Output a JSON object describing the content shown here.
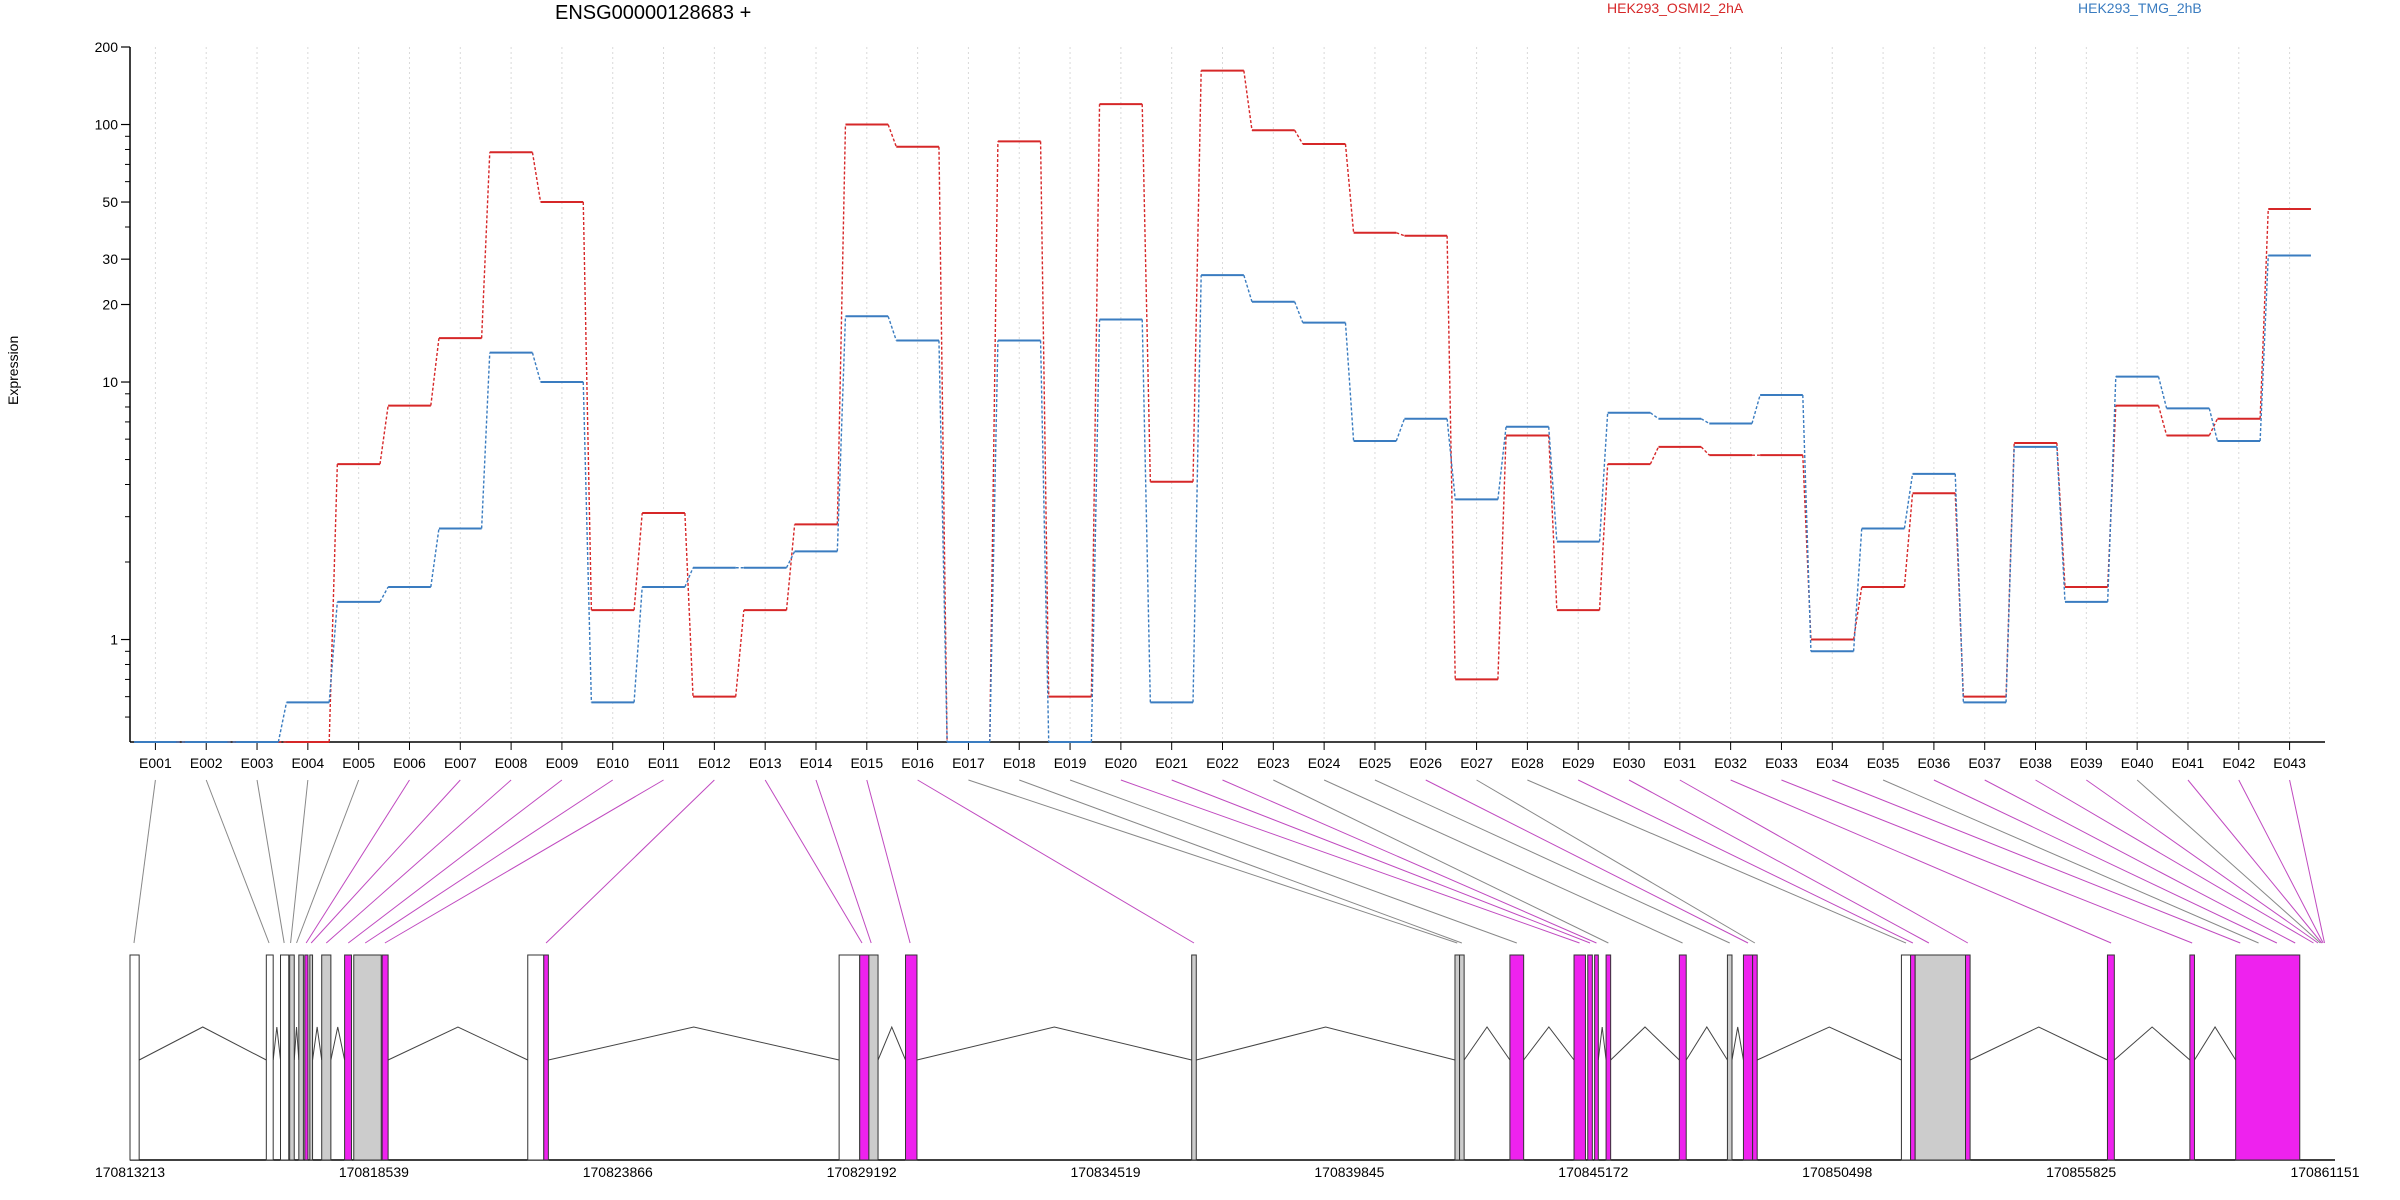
{
  "title": "ENSG00000128683 +",
  "ylabel": "Expression",
  "legend": [
    {
      "name": "HEK293_OSMI2_2hA",
      "color": "#d62728"
    },
    {
      "name": "HEK293_TMG_2hB",
      "color": "#3a7cc0"
    }
  ],
  "chart_data": {
    "type": "line",
    "title": "ENSG00000128683 +",
    "ylabel": "Expression",
    "yscale": "log",
    "ylim": [
      0.4,
      200
    ],
    "y_ticks": [
      1,
      10,
      20,
      30,
      50,
      100,
      200
    ],
    "categories": [
      "E001",
      "E002",
      "E003",
      "E004",
      "E005",
      "E006",
      "E007",
      "E008",
      "E009",
      "E010",
      "E011",
      "E012",
      "E013",
      "E014",
      "E015",
      "E016",
      "E017",
      "E018",
      "E019",
      "E020",
      "E021",
      "E022",
      "E023",
      "E024",
      "E025",
      "E026",
      "E027",
      "E028",
      "E029",
      "E030",
      "E031",
      "E032",
      "E033",
      "E034",
      "E035",
      "E036",
      "E037",
      "E038",
      "E039",
      "E040",
      "E041",
      "E042",
      "E043"
    ],
    "series": [
      {
        "name": "HEK293_OSMI2_2hA",
        "color": "#d62728",
        "values": [
          0.4,
          0.4,
          0.4,
          0.4,
          4.8,
          8.1,
          14.8,
          78,
          50,
          1.3,
          3.1,
          0.6,
          1.3,
          2.8,
          100,
          82,
          0.4,
          86,
          0.6,
          120,
          4.1,
          162,
          95,
          84,
          38,
          37,
          0.7,
          6.2,
          1.3,
          4.8,
          5.6,
          5.2,
          5.2,
          1.0,
          1.6,
          3.7,
          0.6,
          5.8,
          1.6,
          8.1,
          6.2,
          7.2,
          47
        ]
      },
      {
        "name": "HEK293_TMG_2hB",
        "color": "#3a7cc0",
        "values": [
          0.4,
          0.4,
          0.4,
          0.57,
          1.4,
          1.6,
          2.7,
          13,
          10,
          0.57,
          1.6,
          1.9,
          1.9,
          2.2,
          18,
          14.5,
          0.4,
          14.5,
          0.4,
          17.5,
          0.57,
          26,
          20.5,
          17,
          5.9,
          7.2,
          3.5,
          6.7,
          2.4,
          7.6,
          7.2,
          6.9,
          8.9,
          0.9,
          2.7,
          4.4,
          0.57,
          5.6,
          1.4,
          10.5,
          7.9,
          5.9,
          31
        ]
      }
    ],
    "genomic_ticks": [
      170813213,
      170818539,
      170823866,
      170829192,
      170834519,
      170839845,
      170845172,
      170850498,
      170855825,
      170861151
    ],
    "genome_range": [
      170813213,
      170861151
    ],
    "exons": [
      {
        "start": 170813213,
        "end": 170813413,
        "type": "white"
      },
      {
        "start": 170816190,
        "end": 170816340,
        "type": "white"
      },
      {
        "start": 170816500,
        "end": 170816680,
        "type": "white"
      },
      {
        "start": 170816700,
        "end": 170816800,
        "type": "grey"
      },
      {
        "start": 170816900,
        "end": 170817000,
        "type": "grey"
      },
      {
        "start": 170817030,
        "end": 170817100,
        "type": "magenta"
      },
      {
        "start": 170817140,
        "end": 170817200,
        "type": "grey"
      },
      {
        "start": 170817400,
        "end": 170817600,
        "type": "grey"
      },
      {
        "start": 170817900,
        "end": 170818050,
        "type": "magenta"
      },
      {
        "start": 170818100,
        "end": 170818700,
        "type": "grey"
      },
      {
        "start": 170818720,
        "end": 170818850,
        "type": "magenta"
      },
      {
        "start": 170821900,
        "end": 170822250,
        "type": "white"
      },
      {
        "start": 170822250,
        "end": 170822350,
        "type": "magenta"
      },
      {
        "start": 170828700,
        "end": 170829150,
        "type": "white"
      },
      {
        "start": 170829150,
        "end": 170829350,
        "type": "magenta"
      },
      {
        "start": 170829350,
        "end": 170829550,
        "type": "grey"
      },
      {
        "start": 170830150,
        "end": 170830400,
        "type": "magenta"
      },
      {
        "start": 170836400,
        "end": 170836500,
        "type": "grey"
      },
      {
        "start": 170842150,
        "end": 170842250,
        "type": "grey"
      },
      {
        "start": 170842250,
        "end": 170842350,
        "type": "grey"
      },
      {
        "start": 170843350,
        "end": 170843650,
        "type": "magenta"
      },
      {
        "start": 170844750,
        "end": 170845000,
        "type": "magenta"
      },
      {
        "start": 170845050,
        "end": 170845150,
        "type": "magenta"
      },
      {
        "start": 170845200,
        "end": 170845280,
        "type": "magenta"
      },
      {
        "start": 170845450,
        "end": 170845550,
        "type": "magenta"
      },
      {
        "start": 170847050,
        "end": 170847200,
        "type": "magenta"
      },
      {
        "start": 170848100,
        "end": 170848200,
        "type": "grey"
      },
      {
        "start": 170848450,
        "end": 170848650,
        "type": "magenta"
      },
      {
        "start": 170848650,
        "end": 170848750,
        "type": "magenta"
      },
      {
        "start": 170851900,
        "end": 170852100,
        "type": "white"
      },
      {
        "start": 170852100,
        "end": 170852200,
        "type": "magenta"
      },
      {
        "start": 170852200,
        "end": 170853300,
        "type": "grey"
      },
      {
        "start": 170853300,
        "end": 170853400,
        "type": "magenta"
      },
      {
        "start": 170856400,
        "end": 170856550,
        "type": "magenta"
      },
      {
        "start": 170858200,
        "end": 170858300,
        "type": "magenta"
      },
      {
        "start": 170859200,
        "end": 170860600,
        "type": "magenta"
      }
    ],
    "exon_map": [
      170813300,
      170816250,
      170816580,
      170816720,
      170816850,
      170817060,
      170817170,
      170817500,
      170817980,
      170818350,
      170818780,
      170822300,
      170829200,
      170829400,
      170830250,
      170836450,
      170842200,
      170842300,
      170843500,
      170844870,
      170845100,
      170845240,
      170845500,
      170847120,
      170848150,
      170848550,
      170848700,
      170852000,
      170852150,
      170852500,
      170853350,
      170856480,
      170858250,
      170859300,
      170859700,
      170860100,
      170860500,
      170860900,
      170861000,
      170861050,
      170861080,
      170861110,
      170861140
    ]
  }
}
